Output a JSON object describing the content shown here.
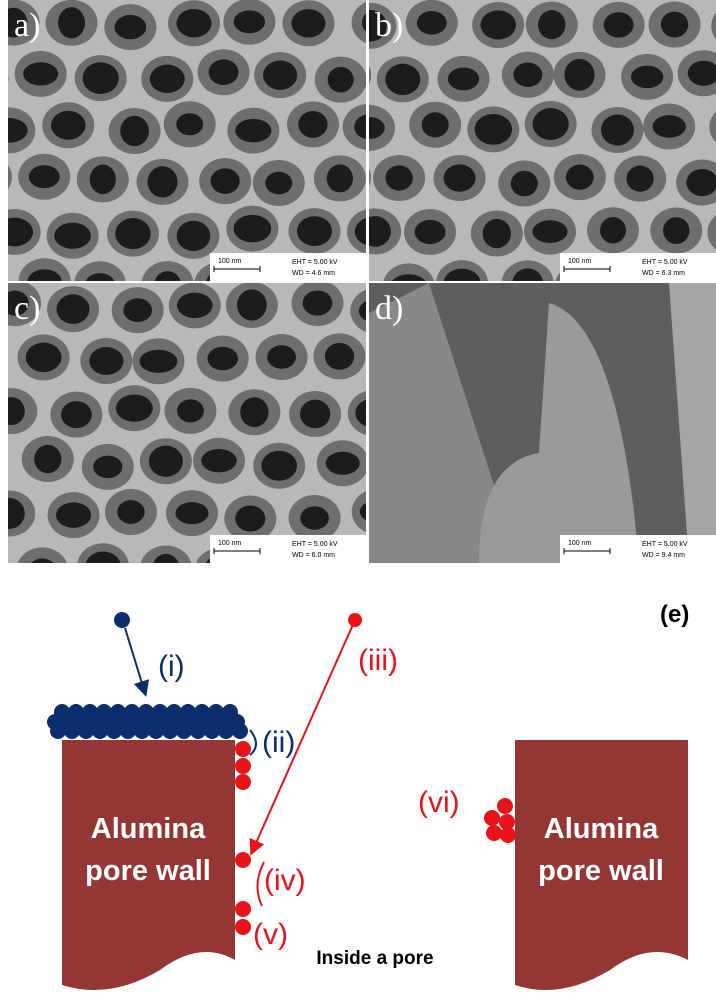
{
  "panels": [
    {
      "label": "a)",
      "scale_bar": "100 nm",
      "eht": "EHT = 5.00 kV",
      "wd": "WD = 4.6 mm"
    },
    {
      "label": "b)",
      "scale_bar": "100 nm",
      "eht": "EHT = 5.00 kV",
      "wd": "WD = 6.3 mm"
    },
    {
      "label": "c)",
      "scale_bar": "100 nm",
      "eht": "EHT = 5.00 kV",
      "wd": "WD = 6.0 mm"
    },
    {
      "label": "d)",
      "scale_bar": "100 nm",
      "eht": "EHT = 5.00 kV",
      "wd": "WD = 9.4 mm"
    }
  ],
  "diagram": {
    "panel_label": "(e)",
    "steps": [
      "(i)",
      "(ii)",
      "(iii)",
      "(iv)",
      "(v)",
      "(vi)"
    ],
    "walls": [
      [
        "Alumina",
        "pore wall"
      ],
      [
        "Alumina",
        "pore wall"
      ]
    ],
    "caption": "Inside a pore"
  }
}
